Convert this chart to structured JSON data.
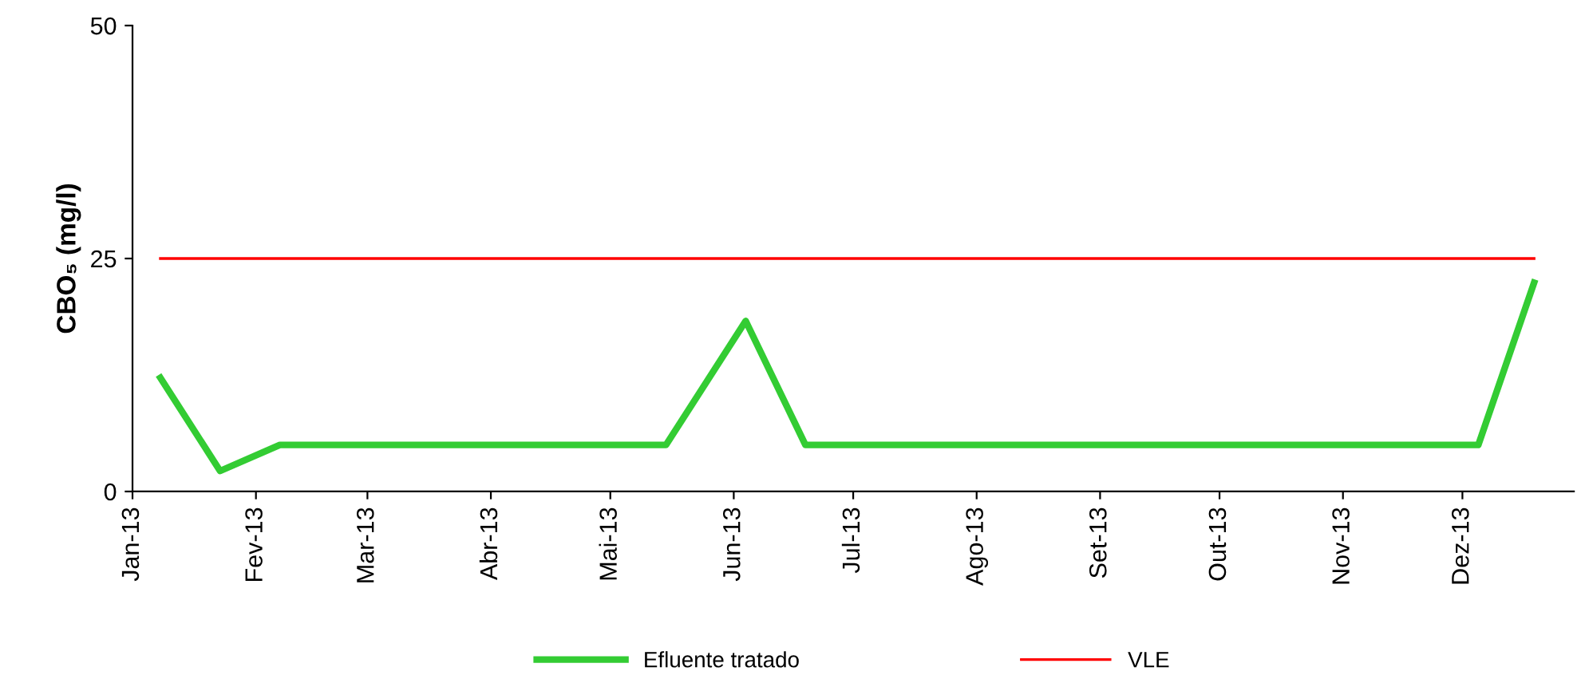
{
  "chart_data": {
    "type": "line",
    "ylabel": "CBO₅ (mg/l)",
    "series": [
      {
        "name": "Efluente tratado",
        "color": "#33cc33",
        "x": [
          "2013-01-08",
          "2013-01-23",
          "2013-02-07",
          "2013-05-15",
          "2013-06-04",
          "2013-06-19",
          "2013-12-05",
          "2013-12-19"
        ],
        "values": [
          12.2,
          2.2,
          5,
          5,
          18.3,
          5,
          5,
          22.4
        ]
      },
      {
        "name": "VLE",
        "color": "#ff0000",
        "x": [
          "2013-01-08",
          "2013-12-19"
        ],
        "values": [
          25,
          25
        ]
      }
    ],
    "xlim": [
      "2013-01-01",
      "2013-12-29"
    ],
    "xticks": [
      {
        "value": "2013-01-01",
        "label": "Jan-13"
      },
      {
        "value": "2013-02-01",
        "label": "Fev-13"
      },
      {
        "value": "2013-03-01",
        "label": "Mar-13"
      },
      {
        "value": "2013-04-01",
        "label": "Abr-13"
      },
      {
        "value": "2013-05-01",
        "label": "Mai-13"
      },
      {
        "value": "2013-06-01",
        "label": "Jun-13"
      },
      {
        "value": "2013-07-01",
        "label": "Jul-13"
      },
      {
        "value": "2013-08-01",
        "label": "Ago-13"
      },
      {
        "value": "2013-09-01",
        "label": "Set-13"
      },
      {
        "value": "2013-10-01",
        "label": "Out-13"
      },
      {
        "value": "2013-11-01",
        "label": "Nov-13"
      },
      {
        "value": "2013-12-01",
        "label": "Dez-13"
      }
    ],
    "ylim": [
      0,
      50
    ],
    "yticks": [
      0,
      25,
      50
    ],
    "grid": false,
    "legend": "bottom",
    "marker": "none",
    "line_style": "solid"
  }
}
